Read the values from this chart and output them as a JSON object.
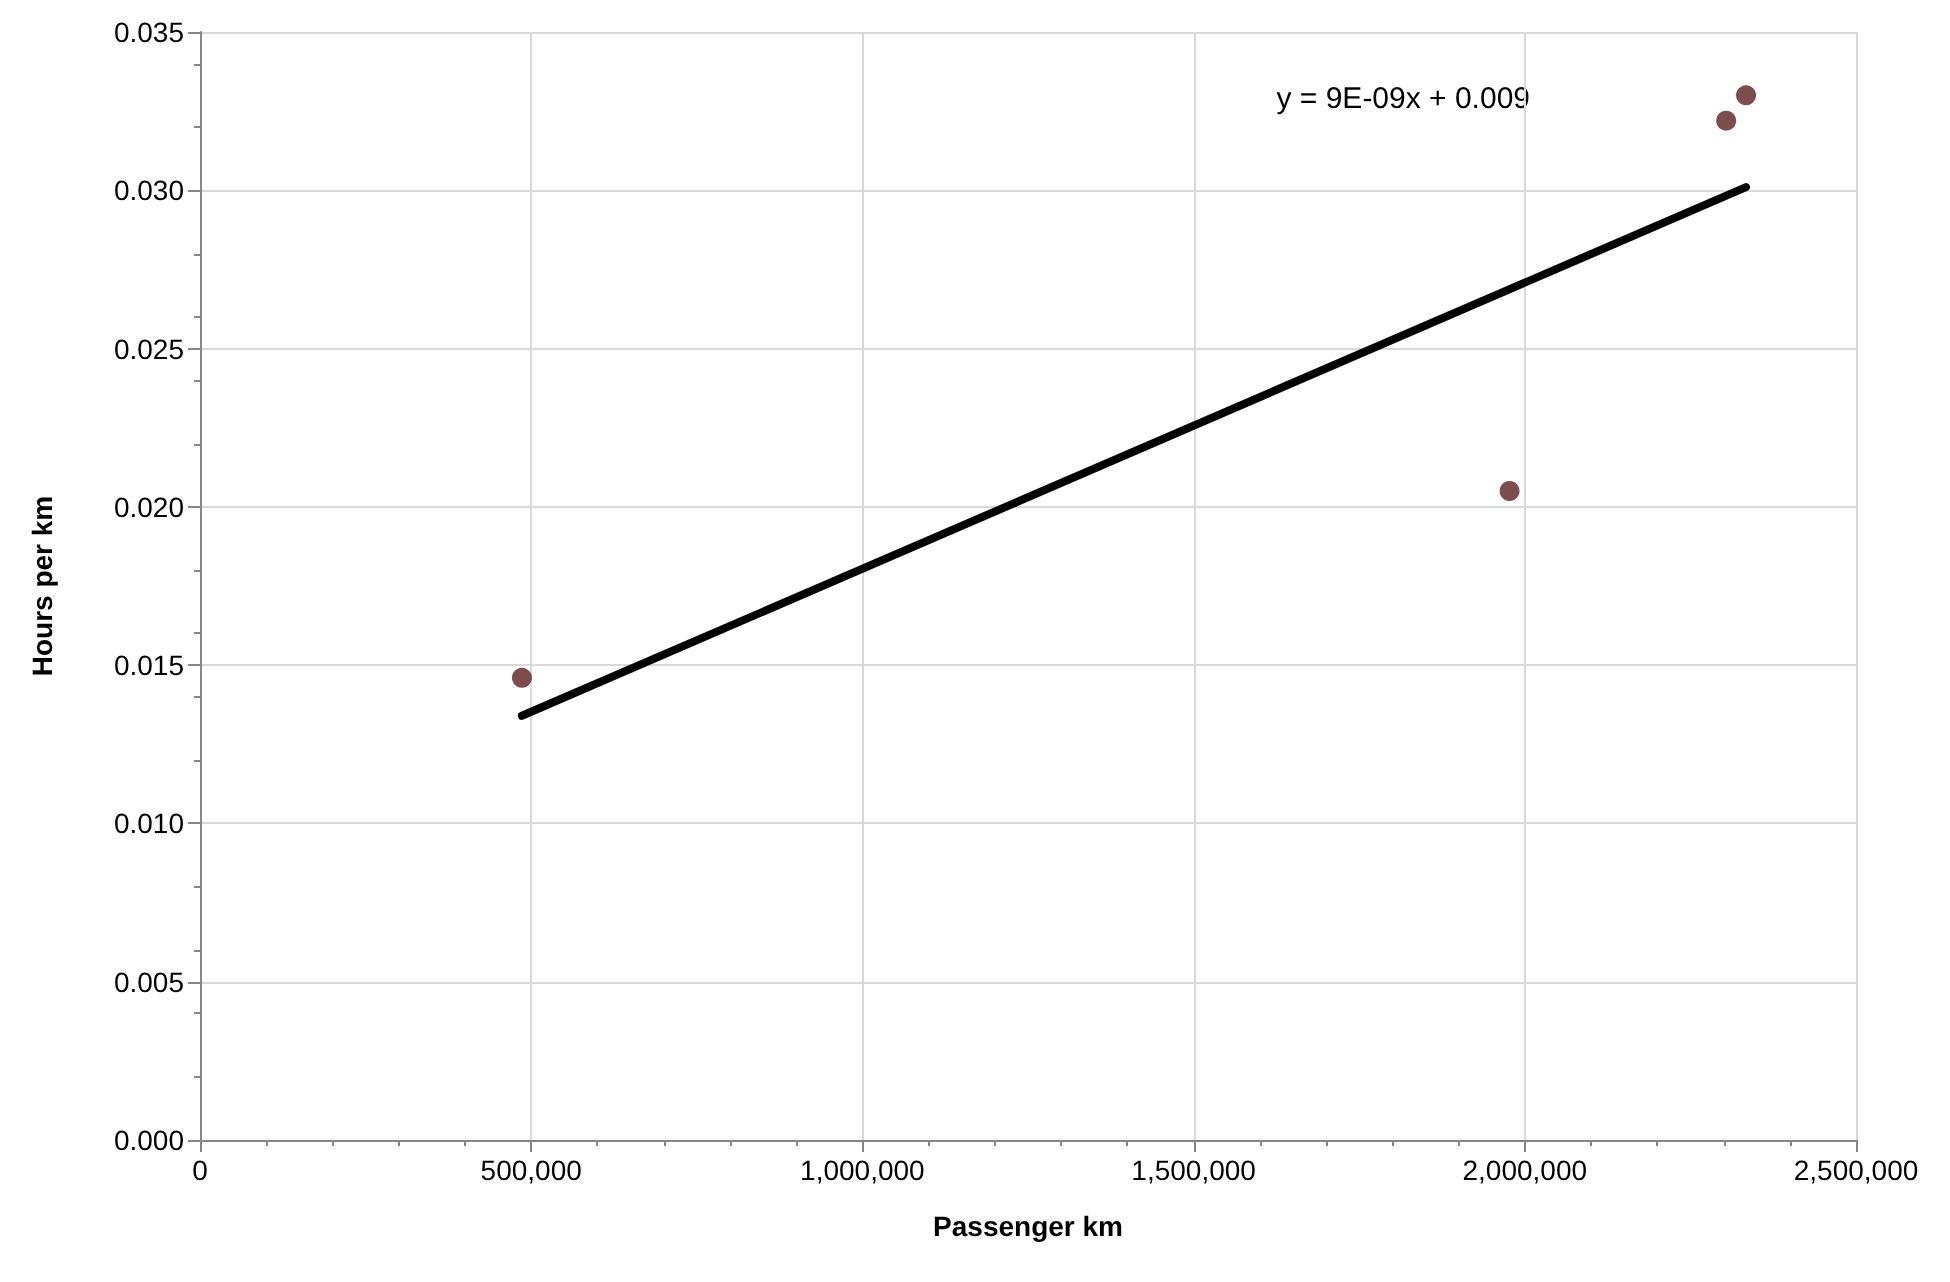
{
  "chart_data": {
    "type": "scatter",
    "xlabel": "Passenger km",
    "ylabel": "Hours per km",
    "grid": true,
    "series": [
      {
        "marker": "circle",
        "color": "#5c1f1f",
        "x": [
          486000,
          1977000,
          2304000,
          2334000
        ],
        "values": [
          0.0146,
          0.0205,
          0.0322,
          0.033
        ]
      },
      {
        "type": "line",
        "marker": "none",
        "color": "#000000",
        "x": [
          486000,
          2334000
        ],
        "values": [
          0.0134,
          0.0301
        ]
      }
    ],
    "annotations": [
      "y = 9E-09x + 0.009"
    ],
    "xlim": [
      0,
      2500000
    ],
    "xticks": [
      {
        "value": 0,
        "label": "0"
      },
      {
        "value": 500000,
        "label": "500,000"
      },
      {
        "value": 1000000,
        "label": "1,000,000"
      },
      {
        "value": 1500000,
        "label": "1,500,000"
      },
      {
        "value": 2000000,
        "label": "2,000,000"
      },
      {
        "value": 2500000,
        "label": "2,500,000"
      }
    ],
    "ylim": [
      0,
      0.035
    ],
    "yticks": [
      {
        "value": 0,
        "label": "0.000"
      },
      {
        "value": 0.005,
        "label": "0.005"
      },
      {
        "value": 0.01,
        "label": "0.010"
      },
      {
        "value": 0.015,
        "label": "0.015"
      },
      {
        "value": 0.02,
        "label": "0.020"
      },
      {
        "value": 0.025,
        "label": "0.025"
      },
      {
        "value": 0.03,
        "label": "0.030"
      },
      {
        "value": 0.035,
        "label": "0.035"
      }
    ]
  }
}
